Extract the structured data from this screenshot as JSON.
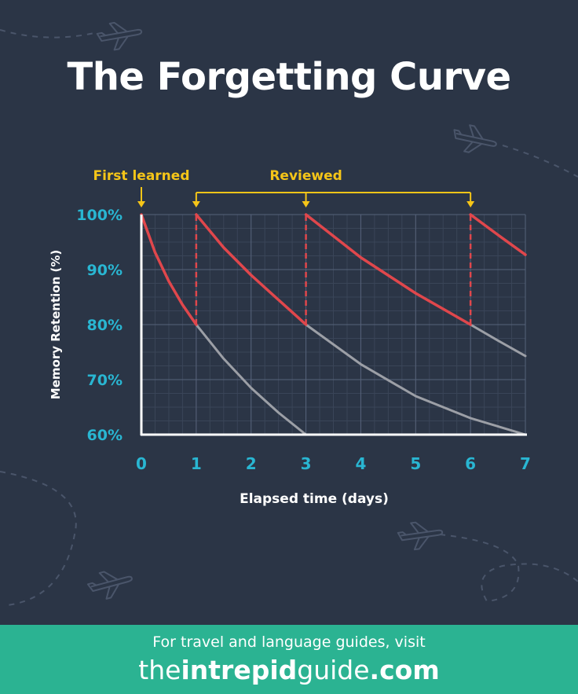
{
  "page": {
    "title": "The Forgetting Curve",
    "colors": {
      "background": "#2b3546",
      "accent_yellow": "#f5c518",
      "tick_blue": "#29b6d2",
      "reviewed_curve": "#e0474c",
      "decay_curve": "#9c9fa6",
      "footer": "#2bb392"
    }
  },
  "annotations": {
    "first_learned": "First learned",
    "reviewed": "Reviewed"
  },
  "chart_data": {
    "type": "line",
    "title": "The Forgetting Curve",
    "xlabel": "Elapsed time (days)",
    "ylabel": "Memory Retention (%)",
    "xlim": [
      0,
      7
    ],
    "ylim": [
      60,
      100
    ],
    "x_ticks": [
      "0",
      "1",
      "2",
      "3",
      "4",
      "5",
      "6",
      "7"
    ],
    "y_ticks": [
      "60%",
      "70%",
      "80%",
      "90%",
      "100%"
    ],
    "grid": true,
    "review_days": [
      1,
      3,
      6
    ],
    "series": [
      {
        "kind": "retention-with-reviews",
        "x": [
          0,
          0.25,
          0.5,
          0.75,
          1,
          1,
          1.5,
          2,
          2.5,
          3,
          3,
          4,
          5,
          6,
          6,
          6.5,
          7
        ],
        "y": [
          100,
          93.1,
          87.9,
          83.6,
          80,
          100,
          94.0,
          89.0,
          84.5,
          80,
          100,
          92.2,
          85.7,
          80,
          100,
          96.3,
          92.7
        ]
      },
      {
        "kind": "decay-without-review",
        "x": [
          1,
          1.5,
          2,
          2.5,
          3
        ],
        "y": [
          80,
          73.8,
          68.5,
          64.0,
          60
        ]
      },
      {
        "kind": "decay-without-review",
        "x": [
          3,
          4,
          5,
          6,
          7
        ],
        "y": [
          80,
          72.8,
          67.0,
          63.0,
          60
        ]
      },
      {
        "kind": "decay-without-review",
        "x": [
          6,
          6.5,
          7
        ],
        "y": [
          80,
          77.1,
          74.3
        ]
      }
    ]
  },
  "footer": {
    "line1": "For travel and language guides, visit",
    "brand_the": "the",
    "brand_intrepid": "intrepid",
    "brand_guide": "guide",
    "brand_tld": ".com"
  }
}
